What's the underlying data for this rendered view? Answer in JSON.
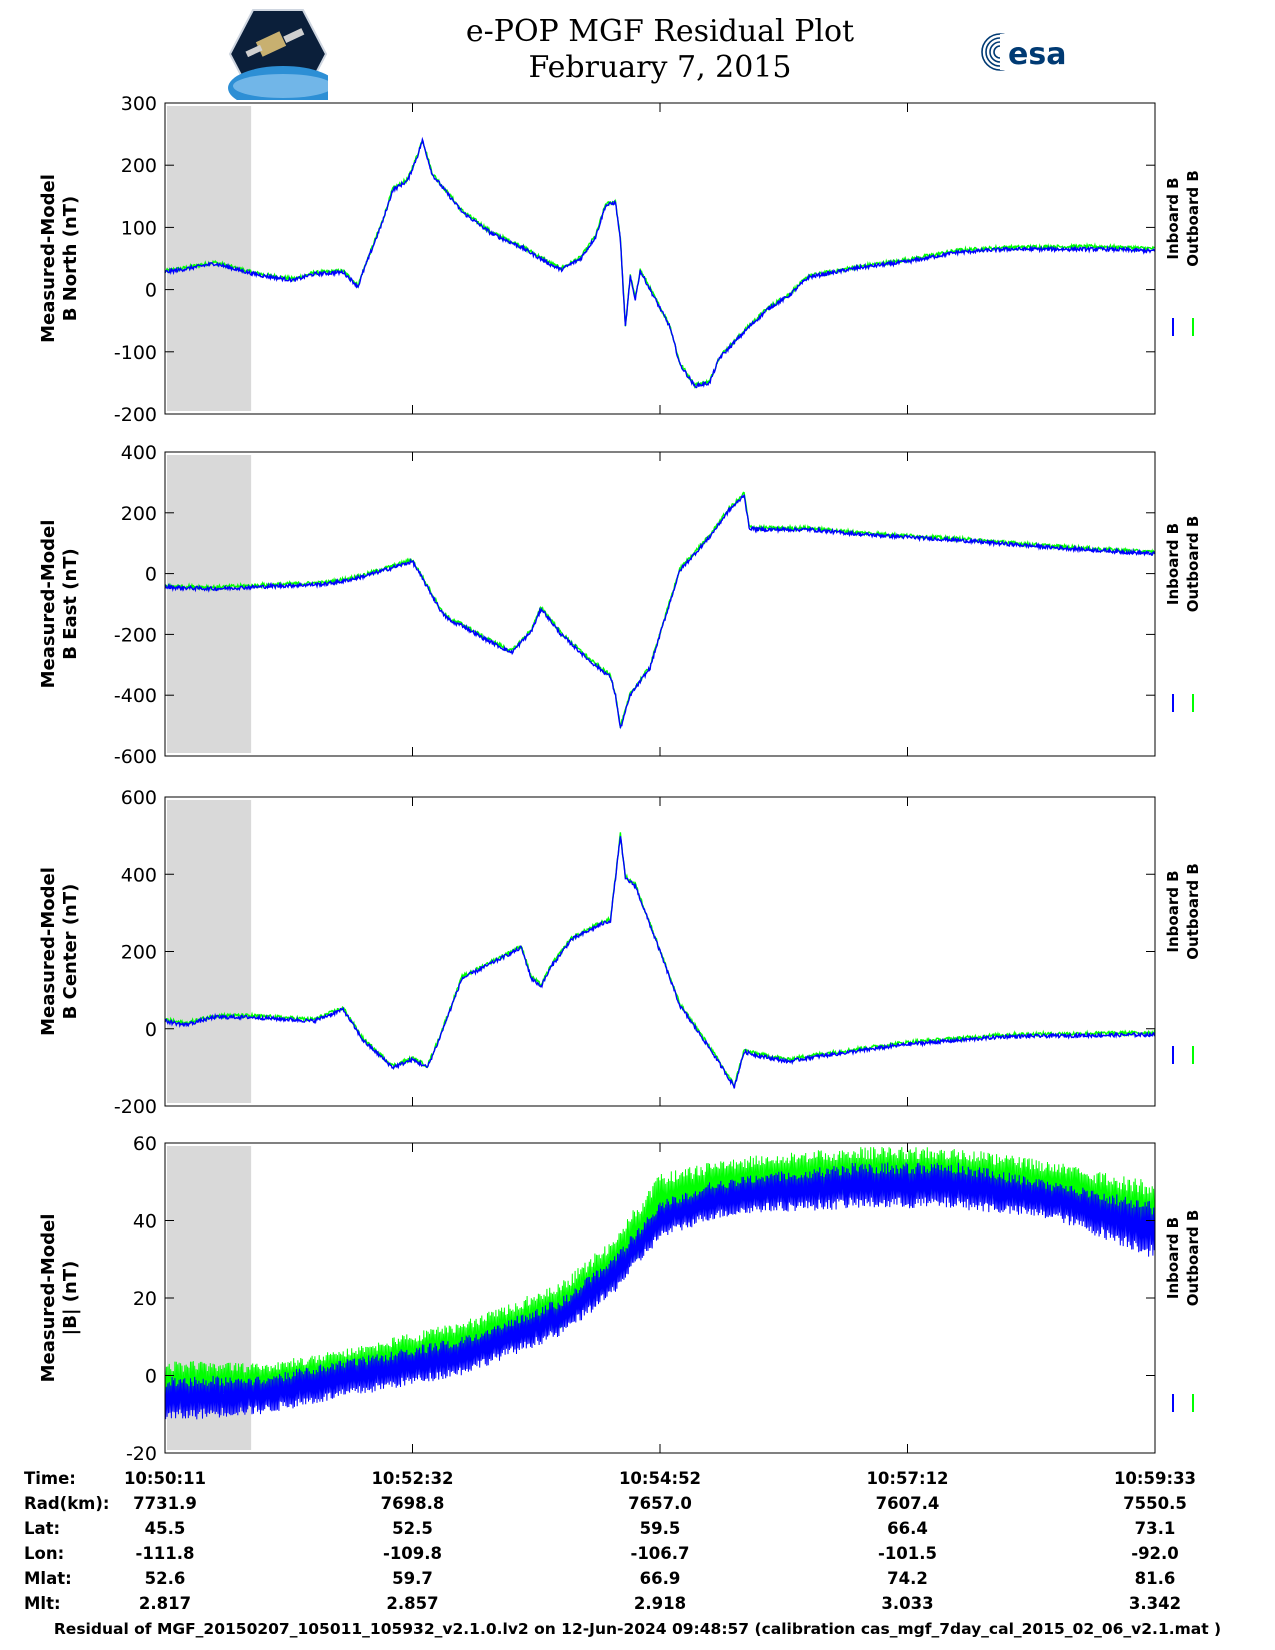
{
  "title": {
    "line1": "e-POP MGF Residual Plot",
    "line2": "February 7, 2015"
  },
  "logos": {
    "left": "cassiope-logo",
    "right_text": "esa",
    "colors": {
      "esa_blue": "#003a73",
      "cassiope_bg": "#0b1f3a",
      "cassiope_earth": "#2d8fd5"
    }
  },
  "colors": {
    "inboard": "#0000ff",
    "outboard": "#00ff00",
    "shade": "#d9d9d9"
  },
  "legend": {
    "inboard": "Inboard B",
    "outboard": "Outboard B"
  },
  "chart_data": [
    {
      "type": "line",
      "ylabel": [
        "Measured-Model",
        "B North (nT)"
      ],
      "ylim": [
        -200,
        300
      ],
      "yticks": [
        -200,
        -100,
        0,
        100,
        200,
        300
      ],
      "x": [
        0,
        0.02,
        0.05,
        0.085,
        0.1,
        0.13,
        0.15,
        0.18,
        0.195,
        0.2,
        0.22,
        0.23,
        0.245,
        0.255,
        0.26,
        0.27,
        0.285,
        0.3,
        0.33,
        0.36,
        0.39,
        0.4,
        0.42,
        0.435,
        0.445,
        0.455,
        0.46,
        0.465,
        0.47,
        0.475,
        0.48,
        0.5,
        0.51,
        0.52,
        0.535,
        0.55,
        0.56,
        0.575,
        0.59,
        0.61,
        0.63,
        0.65,
        0.7,
        0.75,
        0.8,
        0.85,
        0.9,
        0.95,
        1.0
      ],
      "series": [
        {
          "name": "Inboard B",
          "values": [
            28,
            33,
            42,
            27,
            22,
            15,
            25,
            28,
            5,
            28,
            110,
            160,
            175,
            215,
            240,
            185,
            155,
            125,
            90,
            68,
            40,
            32,
            50,
            85,
            135,
            140,
            80,
            -60,
            20,
            -15,
            30,
            -30,
            -60,
            -120,
            -155,
            -150,
            -110,
            -85,
            -60,
            -30,
            -10,
            20,
            35,
            45,
            60,
            65,
            65,
            65,
            62
          ]
        },
        {
          "name": "Outboard B",
          "values": [
            30,
            35,
            44,
            29,
            24,
            17,
            27,
            30,
            7,
            30,
            112,
            162,
            177,
            217,
            242,
            187,
            157,
            127,
            92,
            70,
            42,
            34,
            52,
            87,
            137,
            142,
            82,
            -58,
            22,
            -13,
            32,
            -28,
            -58,
            -118,
            -153,
            -148,
            -108,
            -83,
            -58,
            -28,
            -8,
            22,
            37,
            48,
            63,
            68,
            69,
            69,
            66
          ]
        }
      ]
    },
    {
      "type": "line",
      "ylabel": [
        "Measured-Model",
        "B East (nT)"
      ],
      "ylim": [
        -600,
        400
      ],
      "yticks": [
        -600,
        -400,
        -200,
        0,
        200,
        400
      ],
      "x": [
        0,
        0.05,
        0.085,
        0.12,
        0.16,
        0.18,
        0.2,
        0.24,
        0.25,
        0.28,
        0.29,
        0.3,
        0.32,
        0.35,
        0.37,
        0.38,
        0.4,
        0.43,
        0.45,
        0.455,
        0.46,
        0.47,
        0.49,
        0.5,
        0.52,
        0.55,
        0.57,
        0.58,
        0.585,
        0.59,
        0.6,
        0.65,
        0.7,
        0.8,
        0.9,
        1.0
      ],
      "series": [
        {
          "name": "Inboard B",
          "values": [
            -45,
            -50,
            -45,
            -40,
            -35,
            -25,
            -10,
            30,
            40,
            -130,
            -160,
            -170,
            -210,
            -260,
            -190,
            -115,
            -200,
            -290,
            -340,
            -400,
            -510,
            -400,
            -310,
            -200,
            10,
            120,
            210,
            240,
            260,
            150,
            145,
            145,
            130,
            110,
            85,
            65
          ]
        },
        {
          "name": "Outboard B",
          "values": [
            -40,
            -45,
            -40,
            -35,
            -30,
            -20,
            -5,
            35,
            45,
            -125,
            -155,
            -165,
            -205,
            -255,
            -185,
            -110,
            -195,
            -285,
            -335,
            -395,
            -505,
            -395,
            -305,
            -195,
            15,
            125,
            215,
            245,
            265,
            155,
            150,
            150,
            135,
            115,
            90,
            70
          ]
        }
      ]
    },
    {
      "type": "line",
      "ylabel": [
        "Measured-Model",
        "B Center (nT)"
      ],
      "ylim": [
        -200,
        600
      ],
      "yticks": [
        -200,
        0,
        200,
        400,
        600
      ],
      "x": [
        0,
        0.02,
        0.05,
        0.085,
        0.1,
        0.15,
        0.18,
        0.2,
        0.23,
        0.25,
        0.265,
        0.275,
        0.3,
        0.33,
        0.36,
        0.37,
        0.38,
        0.39,
        0.41,
        0.44,
        0.45,
        0.46,
        0.465,
        0.475,
        0.5,
        0.52,
        0.55,
        0.575,
        0.585,
        0.6,
        0.63,
        0.65,
        0.75,
        0.85,
        1.0
      ],
      "series": [
        {
          "name": "Inboard B",
          "values": [
            20,
            10,
            30,
            30,
            28,
            20,
            50,
            -30,
            -100,
            -80,
            -100,
            -40,
            130,
            170,
            210,
            130,
            110,
            160,
            230,
            270,
            280,
            500,
            390,
            370,
            200,
            60,
            -50,
            -150,
            -60,
            -70,
            -85,
            -75,
            -40,
            -20,
            -15
          ]
        },
        {
          "name": "Outboard B",
          "values": [
            24,
            14,
            34,
            34,
            32,
            24,
            54,
            -26,
            -96,
            -76,
            -96,
            -36,
            134,
            174,
            214,
            134,
            114,
            164,
            234,
            274,
            284,
            504,
            394,
            374,
            204,
            64,
            -46,
            -146,
            -56,
            -66,
            -80,
            -70,
            -35,
            -15,
            -10
          ]
        }
      ]
    },
    {
      "type": "line",
      "ylabel": [
        "Measured-Model",
        "|B| (nT)"
      ],
      "ylim": [
        -20,
        60
      ],
      "yticks": [
        -20,
        0,
        20,
        40,
        60
      ],
      "x": [
        0,
        0.1,
        0.2,
        0.3,
        0.4,
        0.45,
        0.5,
        0.55,
        0.6,
        0.7,
        0.8,
        0.9,
        1.0
      ],
      "series": [
        {
          "name": "Inboard B",
          "min": [
            -12,
            -10,
            -5,
            0,
            10,
            20,
            35,
            40,
            42,
            43,
            43,
            40,
            30
          ],
          "max": [
            0,
            0,
            5,
            10,
            20,
            30,
            45,
            50,
            52,
            55,
            55,
            50,
            45
          ]
        },
        {
          "name": "Outboard B",
          "min": [
            -8,
            -6,
            -2,
            3,
            12,
            22,
            37,
            43,
            45,
            46,
            46,
            43,
            34
          ],
          "max": [
            4,
            3,
            8,
            14,
            24,
            35,
            52,
            55,
            57,
            59,
            59,
            55,
            50
          ]
        }
      ]
    }
  ],
  "xaxis": {
    "times": [
      "10:50:11",
      "10:52:32",
      "10:54:52",
      "10:57:12",
      "10:59:33"
    ]
  },
  "ephemeris": {
    "labels": [
      "Time:",
      "Rad(km):",
      "Lat:",
      "Lon:",
      "Mlat:",
      "Mlt:"
    ],
    "rows": [
      [
        "7731.9",
        "7698.8",
        "7657.0",
        "7607.4",
        "7550.5"
      ],
      [
        "45.5",
        "52.5",
        "59.5",
        "66.4",
        "73.1"
      ],
      [
        "-111.8",
        "-109.8",
        "-106.7",
        "-101.5",
        "-92.0"
      ],
      [
        "52.6",
        "59.7",
        "66.9",
        "74.2",
        "81.6"
      ],
      [
        "2.817",
        "2.857",
        "2.918",
        "3.033",
        "3.342"
      ]
    ]
  },
  "footer": "Residual of MGF_20150207_105011_105932_v2.1.0.lv2 on 12-Jun-2024 09:48:57 (calibration cas_mgf_7day_cal_2015_02_06_v2.1.mat )"
}
